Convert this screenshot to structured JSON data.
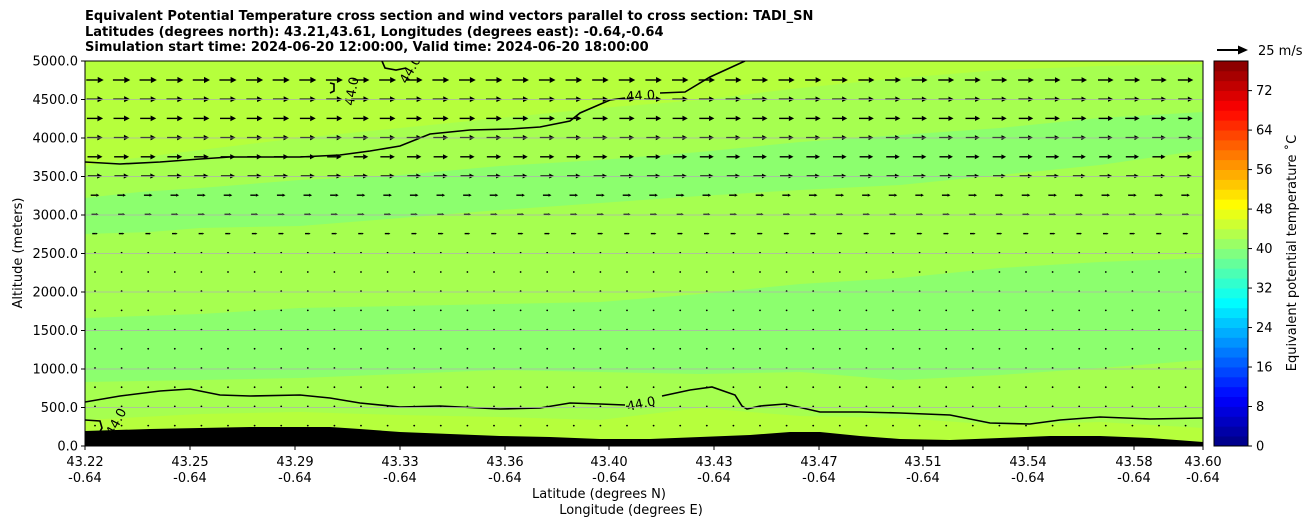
{
  "chart_data": {
    "type": "contour",
    "title_lines": [
      "Equivalent Potential Temperature cross section and wind vectors parallel to cross section: TADI_SN",
      "Latitudes (degrees north): 43.21,43.61, Longitudes (degrees east): -0.64,-0.64",
      "Simulation start time: 2024-06-20 12:00:00, Valid time: 2024-06-20 18:00:00"
    ],
    "xlabel_1": "Latitude (degrees N)",
    "xlabel_2": "Longitude (degrees E)",
    "ylabel": "Altitude (meters)",
    "ylim": [
      0,
      5000
    ],
    "y_ticks": [
      "0.0",
      "500.0",
      "1000.0",
      "1500.0",
      "2000.0",
      "2500.0",
      "3000.0",
      "3500.0",
      "4000.0",
      "4500.0",
      "5000.0"
    ],
    "x_ticks_lat": [
      "43.22",
      "43.25",
      "43.29",
      "43.33",
      "43.36",
      "43.40",
      "43.43",
      "43.47",
      "43.51",
      "43.54",
      "43.58",
      "43.60"
    ],
    "x_ticks_lon": [
      "-0.64",
      "-0.64",
      "-0.64",
      "-0.64",
      "-0.64",
      "-0.64",
      "-0.64",
      "-0.64",
      "-0.64",
      "-0.64",
      "-0.64",
      "-0.64"
    ],
    "grid": "horizontal",
    "contour_label": "44.0",
    "quiver_key_label": "25 m/s",
    "colorbar": {
      "label": "Equivalent potential temperature $^\\circ$C",
      "label_display": "Equivalent potential temperature ˚C",
      "ticks": [
        "0",
        "8",
        "16",
        "24",
        "32",
        "40",
        "48",
        "56",
        "64",
        "72"
      ],
      "range": [
        0,
        78
      ],
      "colormap": "jet"
    },
    "colors": {
      "low_band": "#8cff6e",
      "mid_band": "#a6ff50",
      "high_band": "#b6ff3c",
      "top_band": "#b0ff48",
      "terrain": "#000000"
    }
  }
}
